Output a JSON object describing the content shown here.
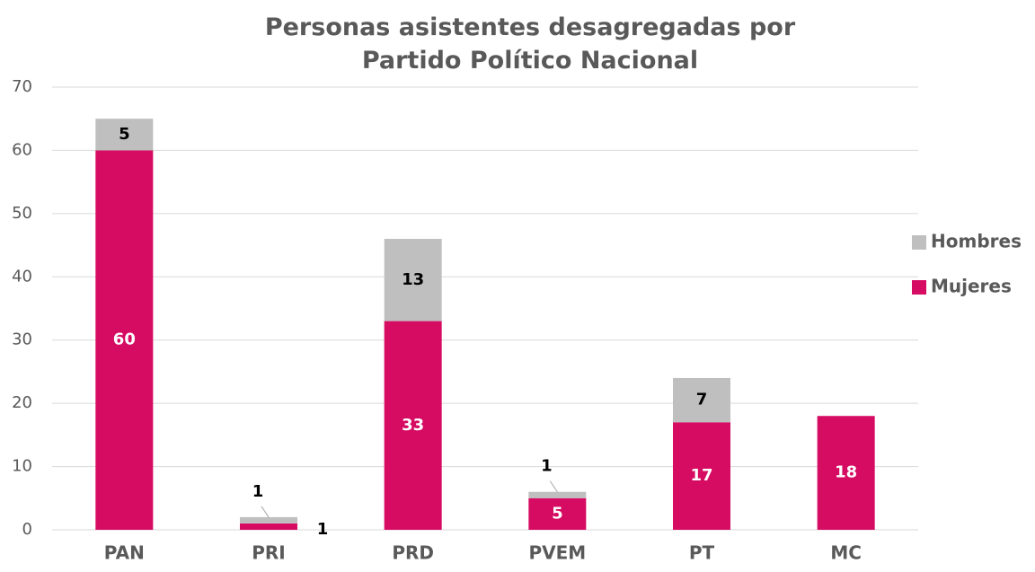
{
  "chart_data": {
    "type": "stacked_bar",
    "title": "Personas asistentes desagregadas por Partido Político Nacional",
    "categories": [
      "PAN",
      "PRI",
      "PRD",
      "PVEM",
      "PT",
      "MC"
    ],
    "series": [
      {
        "name": "Mujeres",
        "color": "#d60b62",
        "values": [
          60,
          1,
          33,
          5,
          17,
          18
        ]
      },
      {
        "name": "Hombres",
        "color": "#bfbfbf",
        "values": [
          5,
          1,
          13,
          1,
          7,
          null
        ]
      }
    ],
    "ylim": [
      0,
      70
    ],
    "yticks": [
      0,
      10,
      20,
      30,
      40,
      50,
      60,
      70
    ],
    "grid": true,
    "legend": "right"
  }
}
